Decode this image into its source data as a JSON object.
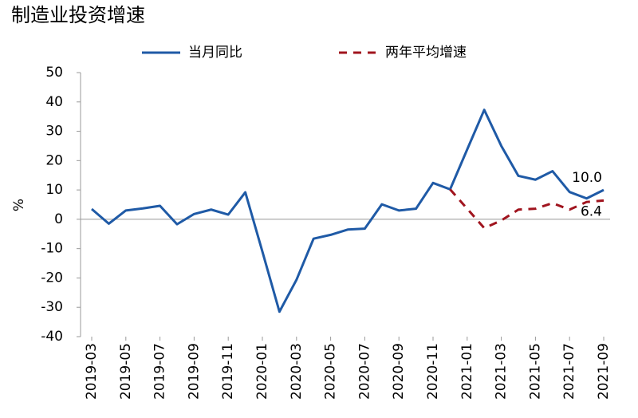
{
  "chart_data": {
    "type": "line",
    "title": "制造业投资增速",
    "y_label": "%",
    "categories": [
      "2019-03",
      null,
      "2019-05",
      null,
      "2019-07",
      null,
      "2019-09",
      null,
      "2019-11",
      null,
      "2020-01",
      null,
      "2020-03",
      null,
      "2020-05",
      null,
      "2020-07",
      null,
      "2020-09",
      null,
      "2020-11",
      null,
      "2021-01",
      null,
      "2021-03",
      null,
      "2021-05",
      null,
      "2021-07",
      null,
      "2021-09"
    ],
    "series": [
      {
        "name": "当月同比",
        "color": "#1f5aa6",
        "dash": false,
        "values": [
          3.5,
          -1.5,
          3.0,
          3.7,
          4.6,
          -1.7,
          1.8,
          3.3,
          1.6,
          9.2,
          -11.0,
          -31.5,
          -20.6,
          -6.6,
          -5.3,
          -3.5,
          -3.2,
          5.1,
          3.0,
          3.6,
          12.4,
          10.2,
          23.8,
          37.3,
          25.0,
          14.8,
          13.5,
          16.4,
          9.3,
          7.1,
          10.0
        ],
        "value_labels": [
          null,
          null,
          null,
          null,
          null,
          null,
          null,
          null,
          null,
          null,
          null,
          null,
          null,
          null,
          null,
          null,
          null,
          null,
          null,
          null,
          null,
          null,
          null,
          null,
          null,
          null,
          null,
          null,
          null,
          null,
          "10.0"
        ]
      },
      {
        "name": "两年平均增速",
        "color": "#a0141e",
        "dash": true,
        "values": [
          null,
          null,
          null,
          null,
          null,
          null,
          null,
          null,
          null,
          null,
          null,
          null,
          null,
          null,
          null,
          null,
          null,
          null,
          null,
          null,
          null,
          10.2,
          3.6,
          -3.0,
          -0.4,
          3.3,
          3.6,
          5.5,
          3.3,
          5.9,
          6.4
        ],
        "value_labels": [
          null,
          null,
          null,
          null,
          null,
          null,
          null,
          null,
          null,
          null,
          null,
          null,
          null,
          null,
          null,
          null,
          null,
          null,
          null,
          null,
          null,
          null,
          null,
          null,
          null,
          null,
          null,
          null,
          null,
          null,
          "6.4"
        ]
      }
    ],
    "ylim": [
      -40,
      50
    ],
    "yticks": [
      -40,
      -30,
      -20,
      -10,
      0,
      10,
      20,
      30,
      40,
      50
    ],
    "grid": false
  }
}
